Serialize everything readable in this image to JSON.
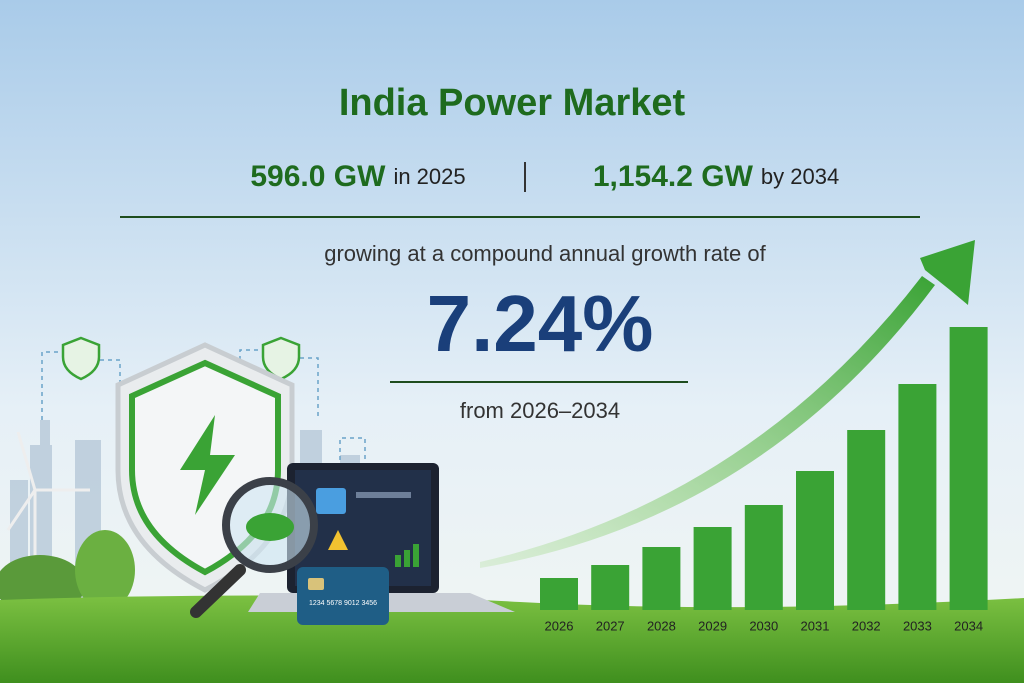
{
  "title": "India Power Market",
  "stats": [
    {
      "value": "596.0 GW",
      "label": "in 2025"
    },
    {
      "value": "1,154.2 GW",
      "label": "by 2034"
    }
  ],
  "growth_text": "growing at a compound annual growth rate of",
  "cagr": "7.24%",
  "period": "from 2026–2034",
  "card_number": "1234 5678 9012 3456",
  "chart_data": {
    "type": "bar",
    "categories": [
      "2026",
      "2027",
      "2028",
      "2029",
      "2030",
      "2031",
      "2032",
      "2033",
      "2034"
    ],
    "values": [
      32,
      45,
      63,
      83,
      105,
      139,
      180,
      226,
      283
    ],
    "color": "#3aa335"
  }
}
